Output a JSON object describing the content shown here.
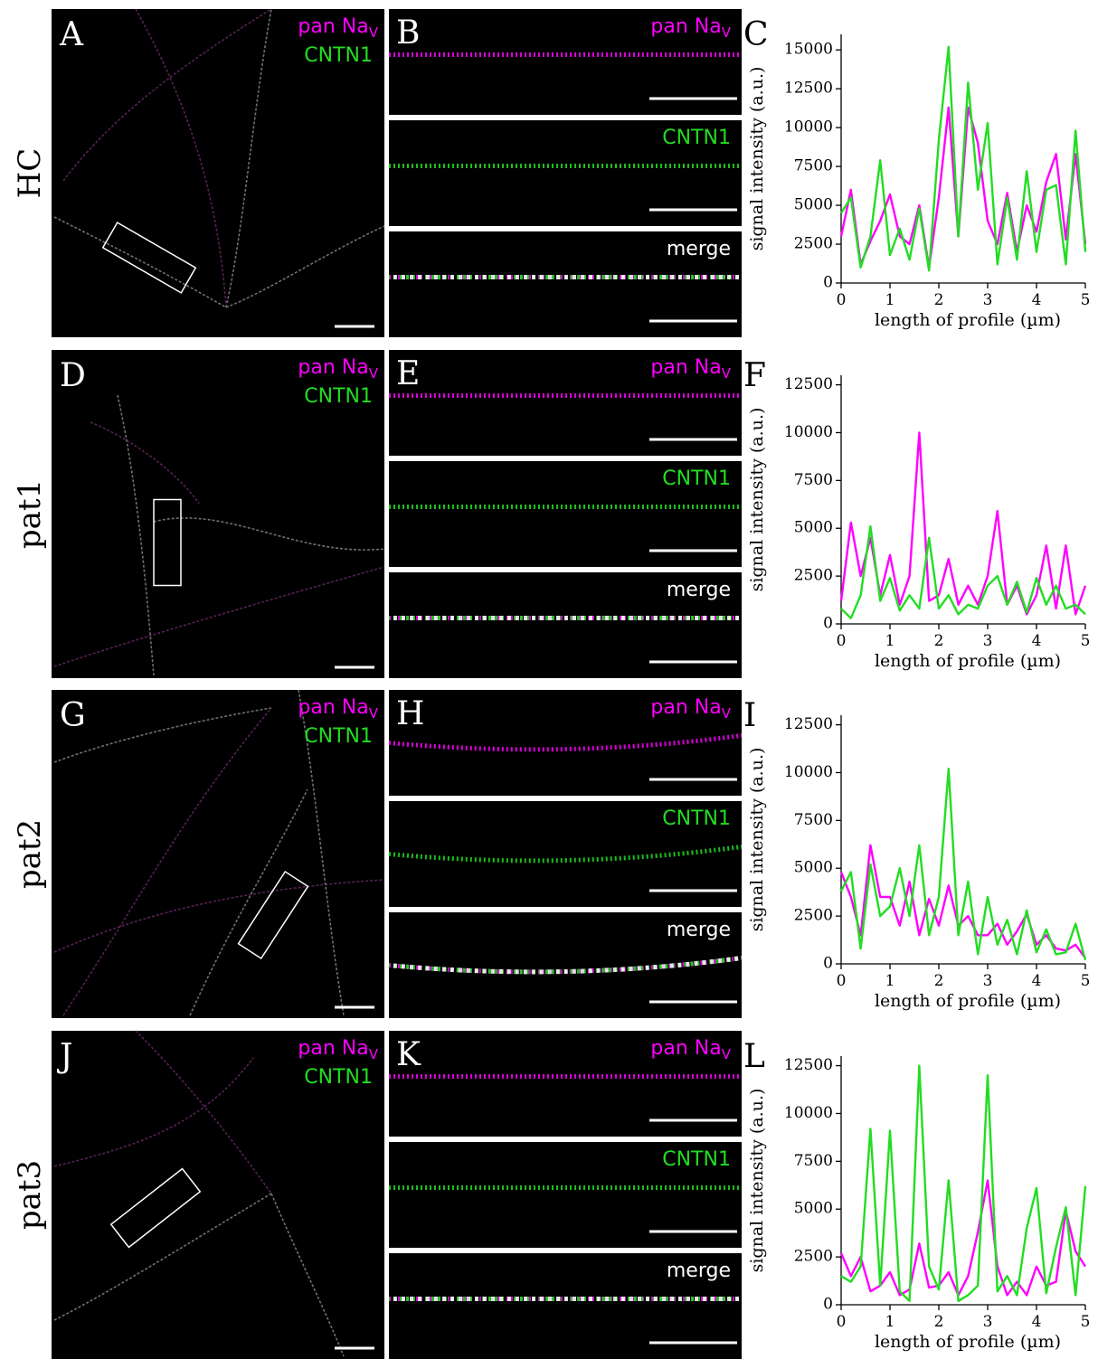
{
  "panels": [
    {
      "row_label": "HC",
      "overview": {
        "letter": "A",
        "label1": "pan Na",
        "label1_sub": "V",
        "label2": "CNTN1"
      },
      "crops": [
        {
          "letter": "B",
          "label": "pan Na",
          "label_sub": "V"
        },
        {
          "label": "CNTN1"
        },
        {
          "label": "merge"
        }
      ]
    },
    {
      "row_label": "pat1",
      "overview": {
        "letter": "D",
        "label1": "pan Na",
        "label1_sub": "V",
        "label2": "CNTN1"
      },
      "crops": [
        {
          "letter": "E",
          "label": "pan Na",
          "label_sub": "V"
        },
        {
          "label": "CNTN1"
        },
        {
          "label": "merge"
        }
      ]
    },
    {
      "row_label": "pat2",
      "overview": {
        "letter": "G",
        "label1": "pan Na",
        "label1_sub": "V",
        "label2": "CNTN1"
      },
      "crops": [
        {
          "letter": "H",
          "label": "pan Na",
          "label_sub": "V"
        },
        {
          "label": "CNTN1"
        },
        {
          "label": "merge"
        }
      ]
    },
    {
      "row_label": "pat3",
      "overview": {
        "letter": "J",
        "label1": "pan Na",
        "label1_sub": "V",
        "label2": "CNTN1"
      },
      "crops": [
        {
          "letter": "K",
          "label": "pan Na",
          "label_sub": "V"
        },
        {
          "label": "CNTN1"
        },
        {
          "label": "merge"
        }
      ]
    }
  ],
  "chart_data": [
    {
      "type": "line",
      "panel_label": "C",
      "y_label": "signal intensity (a.u.)",
      "x_label": "length of profile (µm)",
      "x": [
        0,
        0.2,
        0.4,
        0.6,
        0.8,
        1,
        1.2,
        1.4,
        1.6,
        1.8,
        2,
        2.2,
        2.4,
        2.6,
        2.8,
        3,
        3.2,
        3.4,
        3.6,
        3.8,
        4,
        4.2,
        4.4,
        4.6,
        4.8,
        5
      ],
      "xlim": [
        0,
        5
      ],
      "ylim": [
        0,
        16000
      ],
      "xticks": [
        0,
        1,
        2,
        3,
        4,
        5
      ],
      "yticks": [
        0,
        2500,
        5000,
        7500,
        10000,
        12500,
        15000
      ],
      "series": [
        {
          "color": "#ff00ff",
          "values": [
            3000,
            6000,
            1200,
            2700,
            4000,
            5700,
            3000,
            2500,
            5000,
            1000,
            5500,
            11300,
            3000,
            11300,
            9000,
            4000,
            2500,
            5800,
            2000,
            5000,
            3300,
            6500,
            8300,
            2800,
            8300,
            2500
          ]
        },
        {
          "color": "#22dd22",
          "values": [
            4500,
            5500,
            1000,
            3000,
            7900,
            1800,
            3500,
            1500,
            4800,
            800,
            9200,
            15200,
            3000,
            12900,
            6000,
            10300,
            1200,
            5500,
            1500,
            7200,
            2000,
            6000,
            6300,
            1200,
            9800,
            2000
          ]
        }
      ]
    },
    {
      "type": "line",
      "panel_label": "F",
      "y_label": "signal intensity (a.u.)",
      "x_label": "length of profile (µm)",
      "x": [
        0,
        0.2,
        0.4,
        0.6,
        0.8,
        1,
        1.2,
        1.4,
        1.6,
        1.8,
        2,
        2.2,
        2.4,
        2.6,
        2.8,
        3,
        3.2,
        3.4,
        3.6,
        3.8,
        4,
        4.2,
        4.4,
        4.6,
        4.8,
        5
      ],
      "xlim": [
        0,
        5
      ],
      "ylim": [
        0,
        13000
      ],
      "xticks": [
        0,
        1,
        2,
        3,
        4,
        5
      ],
      "yticks": [
        0,
        2500,
        5000,
        7500,
        10000,
        12500
      ],
      "series": [
        {
          "color": "#ff00ff",
          "values": [
            1200,
            5300,
            2500,
            4500,
            1500,
            3600,
            1000,
            2500,
            10000,
            1200,
            1500,
            3400,
            1000,
            2000,
            1000,
            2500,
            5900,
            1000,
            2000,
            500,
            1500,
            4100,
            800,
            4100,
            500,
            2000
          ]
        },
        {
          "color": "#22dd22",
          "values": [
            800,
            300,
            1500,
            5100,
            1200,
            2400,
            700,
            1500,
            800,
            4500,
            800,
            1500,
            500,
            1000,
            800,
            2000,
            2500,
            1000,
            2200,
            600,
            2400,
            1000,
            2000,
            800,
            1000,
            500
          ]
        }
      ]
    },
    {
      "type": "line",
      "panel_label": "I",
      "y_label": "signal intensity (a.u.)",
      "x_label": "length of profile (µm)",
      "x": [
        0,
        0.2,
        0.4,
        0.6,
        0.8,
        1,
        1.2,
        1.4,
        1.6,
        1.8,
        2,
        2.2,
        2.4,
        2.6,
        2.8,
        3,
        3.2,
        3.4,
        3.6,
        3.8,
        4,
        4.2,
        4.4,
        4.6,
        4.8,
        5
      ],
      "xlim": [
        0,
        5
      ],
      "ylim": [
        0,
        13000
      ],
      "xticks": [
        0,
        1,
        2,
        3,
        4,
        5
      ],
      "yticks": [
        0,
        2500,
        5000,
        7500,
        10000,
        12500
      ],
      "series": [
        {
          "color": "#ff00ff",
          "values": [
            4800,
            3500,
            1500,
            6200,
            3500,
            3500,
            2000,
            4300,
            1500,
            3400,
            2000,
            4100,
            2000,
            2500,
            1500,
            1500,
            2100,
            1000,
            1700,
            2600,
            1000,
            1500,
            800,
            700,
            1000,
            300
          ]
        },
        {
          "color": "#22dd22",
          "values": [
            3800,
            4800,
            800,
            5200,
            2500,
            3000,
            5000,
            2500,
            6200,
            1500,
            3500,
            10200,
            1500,
            4300,
            500,
            3500,
            1000,
            2300,
            500,
            2800,
            600,
            1800,
            500,
            600,
            2100,
            200
          ]
        }
      ]
    },
    {
      "type": "line",
      "panel_label": "L",
      "y_label": "signal intensity (a.u.)",
      "x_label": "length of profile (µm)",
      "x": [
        0,
        0.2,
        0.4,
        0.6,
        0.8,
        1,
        1.2,
        1.4,
        1.6,
        1.8,
        2,
        2.2,
        2.4,
        2.6,
        2.8,
        3,
        3.2,
        3.4,
        3.6,
        3.8,
        4,
        4.2,
        4.4,
        4.6,
        4.8,
        5
      ],
      "xlim": [
        0,
        5
      ],
      "ylim": [
        0,
        13000
      ],
      "xticks": [
        0,
        1,
        2,
        3,
        4,
        5
      ],
      "yticks": [
        0,
        2500,
        5000,
        7500,
        10000,
        12500
      ],
      "series": [
        {
          "color": "#ff00ff",
          "values": [
            2700,
            1500,
            2500,
            700,
            1000,
            1700,
            500,
            800,
            3200,
            900,
            1000,
            1700,
            500,
            1500,
            3800,
            6500,
            2000,
            500,
            1200,
            500,
            2000,
            1000,
            1200,
            4900,
            2800,
            2000
          ]
        },
        {
          "color": "#22dd22",
          "values": [
            1500,
            1200,
            2000,
            9200,
            1000,
            9100,
            700,
            200,
            12500,
            2000,
            800,
            6500,
            200,
            500,
            1000,
            12000,
            700,
            1500,
            500,
            4000,
            6100,
            600,
            3000,
            5100,
            500,
            6200
          ]
        }
      ]
    }
  ]
}
